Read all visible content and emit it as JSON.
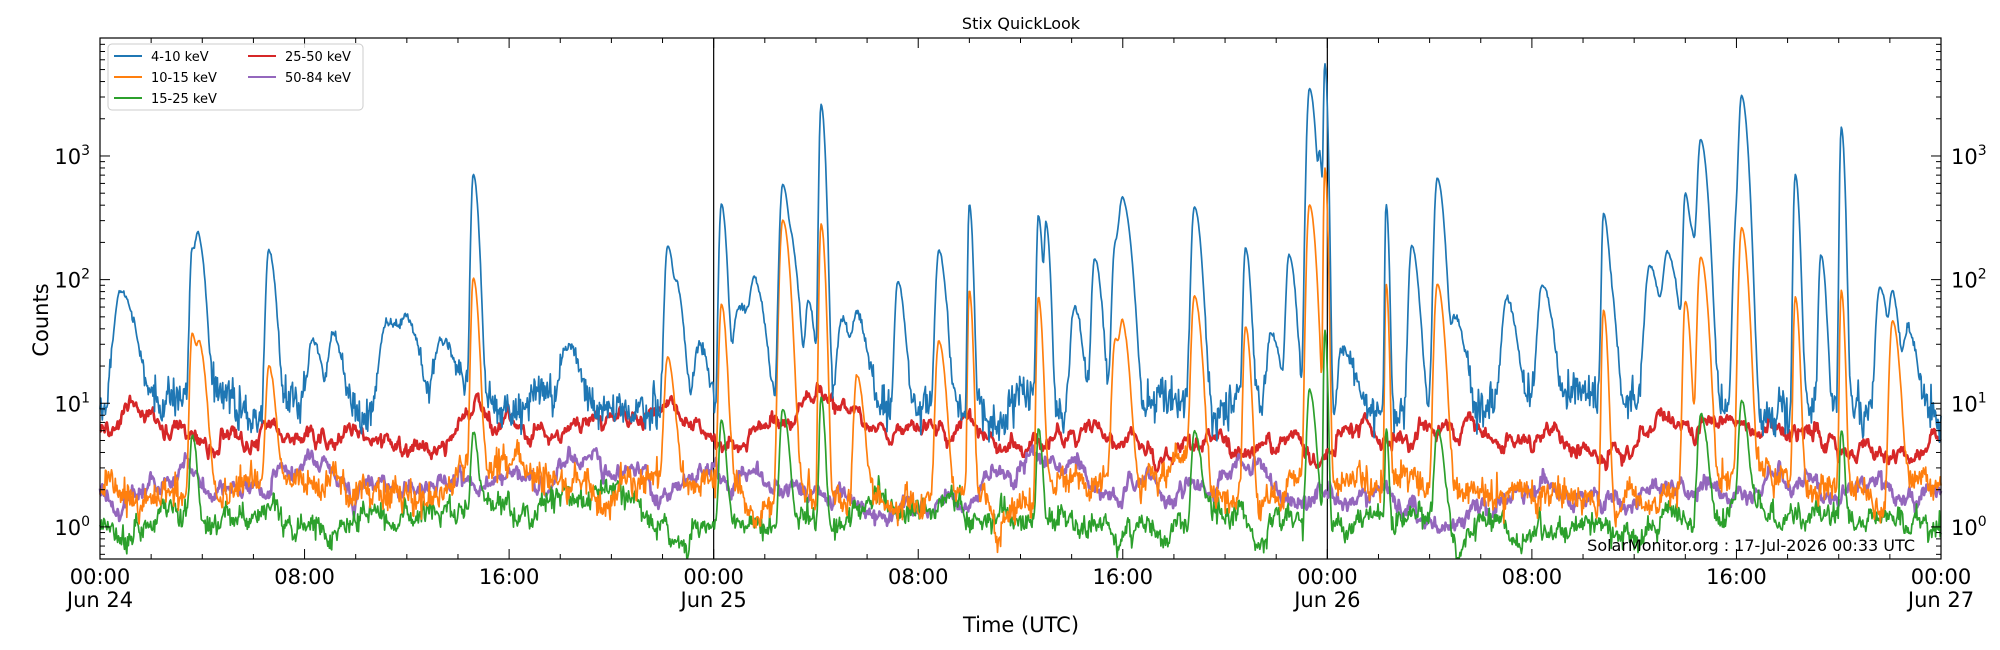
{
  "chart_data": {
    "type": "line",
    "title": "Stix QuickLook",
    "xlabel": "Time (UTC)",
    "ylabel": "Counts",
    "yscale": "log",
    "ylim": [
      0.55,
      9000
    ],
    "xlim_hours": [
      0,
      72
    ],
    "grid": false,
    "legend_position": "top-left",
    "watermark": "SolarMonitor.org : 17-Jul-2026 00:33 UTC",
    "x_ticks": [
      {
        "hour": 0,
        "time": "00:00",
        "date": "Jun 24"
      },
      {
        "hour": 8,
        "time": "08:00",
        "date": ""
      },
      {
        "hour": 16,
        "time": "16:00",
        "date": ""
      },
      {
        "hour": 24,
        "time": "00:00",
        "date": "Jun 25"
      },
      {
        "hour": 32,
        "time": "08:00",
        "date": ""
      },
      {
        "hour": 40,
        "time": "16:00",
        "date": ""
      },
      {
        "hour": 48,
        "time": "00:00",
        "date": "Jun 26"
      },
      {
        "hour": 56,
        "time": "08:00",
        "date": ""
      },
      {
        "hour": 64,
        "time": "16:00",
        "date": ""
      },
      {
        "hour": 72,
        "time": "00:00",
        "date": "Jun 27"
      }
    ],
    "y_ticks": [
      {
        "value": 1,
        "base": "10",
        "exp": "0"
      },
      {
        "value": 10,
        "base": "10",
        "exp": "1"
      },
      {
        "value": 100,
        "base": "10",
        "exp": "2"
      },
      {
        "value": 1000,
        "base": "10",
        "exp": "3"
      }
    ],
    "day_markers_hours": [
      24,
      48
    ],
    "series": [
      {
        "name": "4-10 keV",
        "color": "#1f77b4",
        "baseline": 9.5,
        "noise": 0.18,
        "flares": [
          [
            0.8,
            70,
            0.45
          ],
          [
            3.6,
            160,
            0.15
          ],
          [
            3.85,
            190,
            0.2
          ],
          [
            6.6,
            165,
            0.2
          ],
          [
            8.3,
            25,
            0.3
          ],
          [
            9.1,
            30,
            0.3
          ],
          [
            11.2,
            35,
            0.5
          ],
          [
            12.0,
            30,
            0.4
          ],
          [
            13.3,
            25,
            0.4
          ],
          [
            14.6,
            700,
            0.15
          ],
          [
            18.2,
            20,
            0.4
          ],
          [
            22.2,
            180,
            0.2
          ],
          [
            22.6,
            60,
            0.2
          ],
          [
            23.4,
            20,
            0.3
          ],
          [
            24.3,
            400,
            0.15
          ],
          [
            25.0,
            50,
            0.4
          ],
          [
            25.6,
            80,
            0.3
          ],
          [
            26.7,
            580,
            0.2
          ],
          [
            27.1,
            120,
            0.2
          ],
          [
            27.7,
            60,
            0.2
          ],
          [
            28.2,
            2600,
            0.12
          ],
          [
            29.0,
            40,
            0.3
          ],
          [
            29.6,
            40,
            0.3
          ],
          [
            31.2,
            90,
            0.2
          ],
          [
            32.8,
            160,
            0.2
          ],
          [
            34.0,
            400,
            0.1
          ],
          [
            36.7,
            320,
            0.12
          ],
          [
            37.0,
            270,
            0.12
          ],
          [
            38.1,
            50,
            0.25
          ],
          [
            38.9,
            140,
            0.2
          ],
          [
            39.7,
            180,
            0.2
          ],
          [
            40.0,
            400,
            0.25
          ],
          [
            42.8,
            380,
            0.2
          ],
          [
            44.8,
            170,
            0.15
          ],
          [
            45.8,
            30,
            0.3
          ],
          [
            46.5,
            150,
            0.2
          ],
          [
            48.6,
            20,
            0.3
          ],
          [
            47.3,
            3500,
            0.18
          ],
          [
            47.7,
            800,
            0.1
          ],
          [
            47.9,
            5500,
            0.08
          ],
          [
            50.3,
            400,
            0.08
          ],
          [
            51.3,
            180,
            0.2
          ],
          [
            52.3,
            650,
            0.2
          ],
          [
            53.0,
            40,
            0.3
          ],
          [
            55.0,
            60,
            0.3
          ],
          [
            56.4,
            80,
            0.3
          ],
          [
            58.8,
            320,
            0.12
          ],
          [
            59.0,
            90,
            0.2
          ],
          [
            60.6,
            120,
            0.3
          ],
          [
            61.3,
            150,
            0.3
          ],
          [
            62.0,
            480,
            0.15
          ],
          [
            62.6,
            1300,
            0.2
          ],
          [
            62.3,
            150,
            0.2
          ],
          [
            64.2,
            2900,
            0.18
          ],
          [
            64.0,
            300,
            0.2
          ],
          [
            66.3,
            700,
            0.12
          ],
          [
            67.3,
            150,
            0.15
          ],
          [
            68.1,
            1700,
            0.1
          ],
          [
            69.6,
            80,
            0.25
          ],
          [
            70.1,
            65,
            0.2
          ],
          [
            70.7,
            30,
            0.3
          ]
        ]
      },
      {
        "name": "10-15 keV",
        "color": "#ff7f0e",
        "baseline": 1.9,
        "noise": 0.12,
        "flares": [
          [
            3.6,
            35,
            0.15
          ],
          [
            3.9,
            25,
            0.2
          ],
          [
            6.6,
            18,
            0.2
          ],
          [
            14.6,
            100,
            0.15
          ],
          [
            22.2,
            20,
            0.2
          ],
          [
            24.3,
            60,
            0.15
          ],
          [
            26.7,
            300,
            0.2
          ],
          [
            28.2,
            280,
            0.12
          ],
          [
            29.6,
            15,
            0.2
          ],
          [
            32.8,
            30,
            0.2
          ],
          [
            34.0,
            80,
            0.1
          ],
          [
            36.7,
            70,
            0.12
          ],
          [
            39.7,
            30,
            0.2
          ],
          [
            40.0,
            35,
            0.2
          ],
          [
            42.8,
            70,
            0.2
          ],
          [
            44.8,
            40,
            0.15
          ],
          [
            47.3,
            400,
            0.18
          ],
          [
            47.9,
            800,
            0.08
          ],
          [
            50.3,
            90,
            0.08
          ],
          [
            52.3,
            90,
            0.2
          ],
          [
            58.8,
            55,
            0.12
          ],
          [
            62.0,
            65,
            0.15
          ],
          [
            62.6,
            150,
            0.2
          ],
          [
            64.2,
            260,
            0.18
          ],
          [
            66.3,
            70,
            0.12
          ],
          [
            68.1,
            80,
            0.1
          ],
          [
            70.1,
            45,
            0.2
          ]
        ]
      },
      {
        "name": "15-25 keV",
        "color": "#2ca02c",
        "baseline": 1.15,
        "noise": 0.09,
        "flares": [
          [
            3.6,
            4.5,
            0.15
          ],
          [
            14.6,
            4.5,
            0.15
          ],
          [
            24.3,
            6,
            0.15
          ],
          [
            26.7,
            8,
            0.2
          ],
          [
            28.2,
            10,
            0.12
          ],
          [
            36.7,
            5,
            0.12
          ],
          [
            42.8,
            5,
            0.2
          ],
          [
            47.3,
            12,
            0.18
          ],
          [
            47.9,
            38,
            0.08
          ],
          [
            50.3,
            5,
            0.08
          ],
          [
            52.3,
            5,
            0.2
          ],
          [
            62.6,
            7,
            0.2
          ],
          [
            64.2,
            9,
            0.18
          ],
          [
            68.1,
            5,
            0.1
          ]
        ]
      },
      {
        "name": "25-50 keV",
        "color": "#d62728",
        "baseline": 5.6,
        "noise": 0.03,
        "flares": []
      },
      {
        "name": "50-84 keV",
        "color": "#9467bd",
        "baseline": 2.05,
        "noise": 0.04,
        "flares": []
      }
    ]
  }
}
